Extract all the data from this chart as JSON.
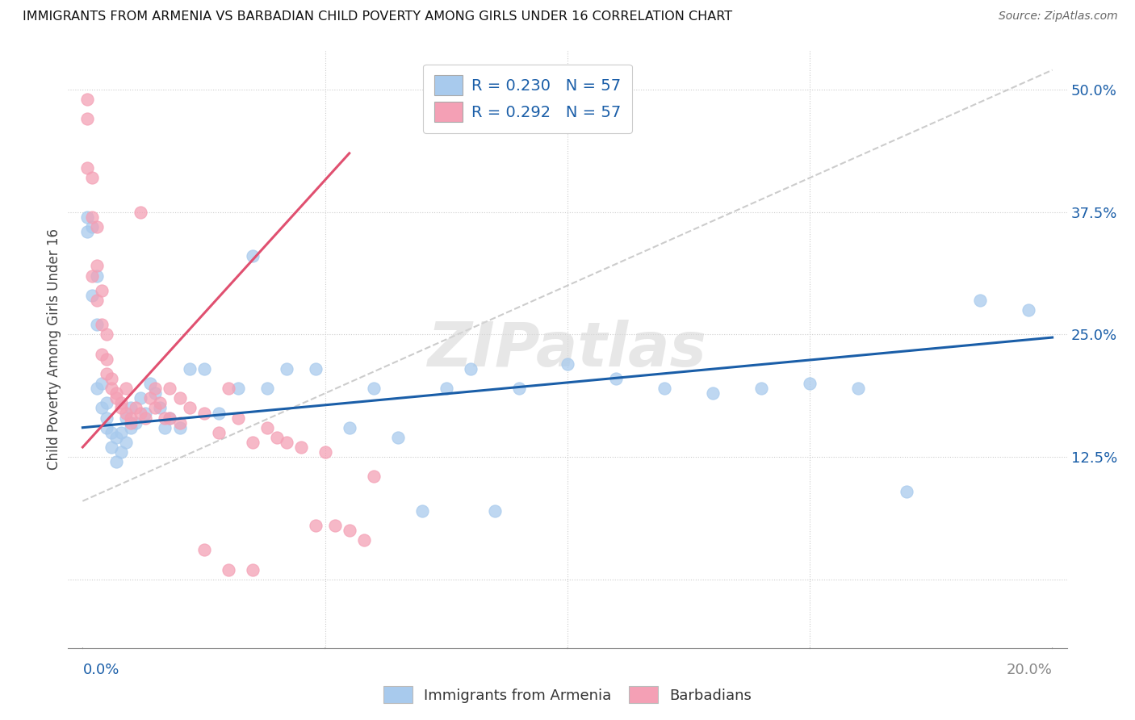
{
  "title": "IMMIGRANTS FROM ARMENIA VS BARBADIAN CHILD POVERTY AMONG GIRLS UNDER 16 CORRELATION CHART",
  "source": "Source: ZipAtlas.com",
  "ylabel": "Child Poverty Among Girls Under 16",
  "ytick_values": [
    0.125,
    0.25,
    0.375,
    0.5
  ],
  "xmin": 0.0,
  "xmax": 0.2,
  "ymin": -0.07,
  "ymax": 0.54,
  "legend_r1": "R = 0.230   N = 57",
  "legend_r2": "R = 0.292   N = 57",
  "color_blue": "#A8CAED",
  "color_pink": "#F4A0B5",
  "line_color_blue": "#1A5EA8",
  "line_color_pink": "#E05070",
  "line_color_gray": "#C0C0C0",
  "watermark": "ZIPatlas",
  "blue_line": [
    0.0,
    0.155,
    0.2,
    0.247
  ],
  "pink_line": [
    0.0,
    0.135,
    0.055,
    0.435
  ],
  "gray_line": [
    0.0,
    0.08,
    0.2,
    0.52
  ],
  "arm_x": [
    0.001,
    0.001,
    0.002,
    0.002,
    0.003,
    0.003,
    0.003,
    0.004,
    0.004,
    0.005,
    0.005,
    0.005,
    0.006,
    0.006,
    0.007,
    0.007,
    0.008,
    0.008,
    0.009,
    0.009,
    0.01,
    0.01,
    0.011,
    0.012,
    0.013,
    0.014,
    0.015,
    0.016,
    0.017,
    0.018,
    0.02,
    0.022,
    0.025,
    0.028,
    0.032,
    0.035,
    0.038,
    0.042,
    0.048,
    0.055,
    0.06,
    0.065,
    0.07,
    0.075,
    0.08,
    0.085,
    0.09,
    0.1,
    0.11,
    0.12,
    0.13,
    0.14,
    0.15,
    0.16,
    0.17,
    0.185,
    0.195
  ],
  "arm_y": [
    0.37,
    0.355,
    0.36,
    0.29,
    0.31,
    0.26,
    0.195,
    0.2,
    0.175,
    0.165,
    0.18,
    0.155,
    0.15,
    0.135,
    0.145,
    0.12,
    0.15,
    0.13,
    0.165,
    0.14,
    0.175,
    0.155,
    0.16,
    0.185,
    0.17,
    0.2,
    0.19,
    0.175,
    0.155,
    0.165,
    0.155,
    0.215,
    0.215,
    0.17,
    0.195,
    0.33,
    0.195,
    0.215,
    0.215,
    0.155,
    0.195,
    0.145,
    0.07,
    0.195,
    0.215,
    0.07,
    0.195,
    0.22,
    0.205,
    0.195,
    0.19,
    0.195,
    0.2,
    0.195,
    0.09,
    0.285,
    0.275
  ],
  "bar_x": [
    0.001,
    0.001,
    0.001,
    0.002,
    0.002,
    0.002,
    0.003,
    0.003,
    0.003,
    0.004,
    0.004,
    0.004,
    0.005,
    0.005,
    0.005,
    0.006,
    0.006,
    0.007,
    0.007,
    0.008,
    0.008,
    0.009,
    0.009,
    0.01,
    0.01,
    0.011,
    0.012,
    0.013,
    0.014,
    0.015,
    0.016,
    0.017,
    0.018,
    0.02,
    0.022,
    0.025,
    0.028,
    0.03,
    0.032,
    0.035,
    0.038,
    0.04,
    0.042,
    0.045,
    0.048,
    0.05,
    0.052,
    0.055,
    0.058,
    0.06,
    0.012,
    0.015,
    0.018,
    0.02,
    0.025,
    0.03,
    0.035
  ],
  "bar_y": [
    0.49,
    0.47,
    0.42,
    0.41,
    0.37,
    0.31,
    0.36,
    0.32,
    0.285,
    0.295,
    0.26,
    0.23,
    0.25,
    0.225,
    0.21,
    0.195,
    0.205,
    0.19,
    0.185,
    0.18,
    0.175,
    0.195,
    0.17,
    0.165,
    0.16,
    0.175,
    0.17,
    0.165,
    0.185,
    0.175,
    0.18,
    0.165,
    0.195,
    0.185,
    0.175,
    0.17,
    0.15,
    0.195,
    0.165,
    0.14,
    0.155,
    0.145,
    0.14,
    0.135,
    0.055,
    0.13,
    0.055,
    0.05,
    0.04,
    0.105,
    0.375,
    0.195,
    0.165,
    0.16,
    0.03,
    0.01,
    0.01
  ]
}
